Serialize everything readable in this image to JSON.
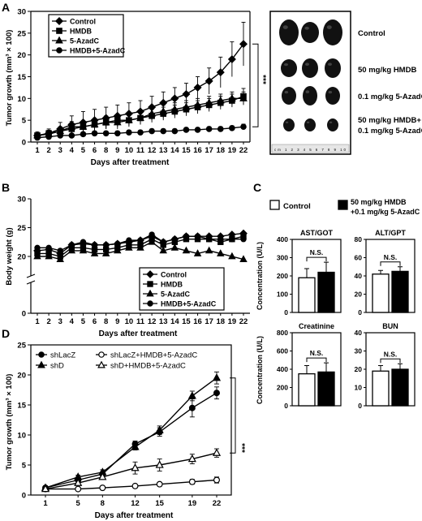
{
  "panels": {
    "A": {
      "letter": "A",
      "ylabel": "Tumor growth (mm³ × 100)",
      "xlabel": "Days after treatment",
      "significance": "***",
      "photo_labels": [
        "Control",
        "50 mg/kg HMDB",
        "0.1 mg/kg 5-AzadC",
        "50 mg/kg HMDB+",
        "0.1 mg/kg 5-AzadC"
      ],
      "ruler_text": "cm 1 2 3 4 5 6 7 8 9 10"
    },
    "B": {
      "letter": "B",
      "ylabel": "Body weight (g)",
      "xlabel": "Days after treatment"
    },
    "C": {
      "letter": "C",
      "legend": [
        "Control",
        "50 mg/kg HMDB",
        "+0.1 mg/kg 5-AzadC"
      ],
      "ylabel": "Concentration (U/L)",
      "ns": "N.S."
    },
    "D": {
      "letter": "D",
      "ylabel": "Tumor growth (mm³ × 100)",
      "xlabel": "Days after treatment",
      "significance": "***"
    }
  },
  "chart_data": [
    {
      "id": "A",
      "type": "line",
      "categories": [
        "1",
        "2",
        "3",
        "4",
        "5",
        "6",
        "8",
        "9",
        "10",
        "11",
        "12",
        "13",
        "14",
        "15",
        "16",
        "17",
        "18",
        "19",
        "22"
      ],
      "ylim": [
        0,
        30
      ],
      "yticks": [
        0,
        5,
        10,
        15,
        20,
        25,
        30
      ],
      "series": [
        {
          "name": "Control",
          "marker": "diamond",
          "values": [
            1.5,
            2.0,
            3.0,
            4.0,
            4.5,
            5.0,
            5.5,
            6.0,
            6.5,
            7.0,
            8.0,
            9.0,
            10.0,
            11.0,
            12.5,
            14.0,
            16.0,
            19.0,
            22.5
          ],
          "err": [
            0.8,
            1.0,
            1.5,
            2.0,
            2.5,
            2.5,
            2.5,
            2.5,
            2.5,
            2.5,
            2.5,
            2.5,
            2.5,
            2.5,
            2.5,
            3.0,
            3.5,
            4.0,
            5.0
          ]
        },
        {
          "name": "HMDB",
          "marker": "square",
          "values": [
            1.5,
            2.0,
            2.5,
            3.0,
            3.5,
            4.0,
            4.5,
            5.0,
            5.0,
            5.5,
            6.0,
            6.5,
            7.0,
            7.5,
            8.0,
            8.5,
            9.0,
            9.5,
            10.5
          ],
          "err": [
            0.5,
            0.7,
            0.8,
            1.0,
            1.0,
            1.0,
            1.2,
            1.2,
            1.2,
            1.5,
            1.5,
            1.5,
            1.5,
            1.5,
            1.5,
            1.5,
            1.5,
            1.5,
            1.8
          ]
        },
        {
          "name": "5-AzadC",
          "marker": "triangle",
          "values": [
            1.5,
            1.8,
            2.5,
            3.5,
            3.5,
            4.0,
            4.5,
            4.5,
            5.0,
            5.5,
            6.5,
            7.0,
            7.5,
            8.0,
            8.5,
            9.0,
            9.5,
            10.0,
            10.0
          ],
          "err": [
            0.5,
            0.7,
            1.0,
            1.2,
            1.2,
            1.2,
            1.5,
            1.5,
            1.5,
            1.5,
            1.5,
            1.5,
            1.5,
            1.5,
            1.5,
            1.5,
            1.5,
            1.5,
            1.5
          ]
        },
        {
          "name": "HMDB+5-AzadC",
          "marker": "circle",
          "values": [
            1.0,
            1.2,
            1.5,
            1.5,
            1.8,
            2.0,
            2.0,
            2.0,
            2.2,
            2.2,
            2.5,
            2.5,
            2.5,
            2.8,
            2.8,
            3.0,
            3.0,
            3.2,
            3.5
          ],
          "err": [
            0.3,
            0.3,
            0.4,
            0.4,
            0.4,
            0.5,
            0.5,
            0.5,
            0.5,
            0.5,
            0.5,
            0.5,
            0.5,
            0.5,
            0.5,
            0.5,
            0.5,
            0.5,
            0.6
          ]
        }
      ]
    },
    {
      "id": "B",
      "type": "line",
      "categories": [
        "1",
        "2",
        "3",
        "4",
        "5",
        "6",
        "8",
        "9",
        "10",
        "11",
        "12",
        "13",
        "14",
        "15",
        "16",
        "17",
        "18",
        "19",
        "22"
      ],
      "ylim": [
        0,
        30
      ],
      "yticks": [
        0,
        20,
        25,
        30
      ],
      "axis_break": true,
      "series": [
        {
          "name": "Control",
          "marker": "diamond",
          "values": [
            21.0,
            21.2,
            20.5,
            22.0,
            22.2,
            22.0,
            22.0,
            22.2,
            22.5,
            22.8,
            23.5,
            22.5,
            23.0,
            23.5,
            23.5,
            23.5,
            23.5,
            23.8,
            24.0
          ]
        },
        {
          "name": "HMDB",
          "marker": "square",
          "values": [
            20.5,
            20.5,
            20.0,
            21.5,
            21.5,
            21.2,
            21.2,
            21.5,
            22.0,
            22.0,
            23.0,
            22.0,
            22.5,
            23.0,
            23.0,
            23.0,
            22.5,
            23.0,
            23.5
          ]
        },
        {
          "name": "5-AzadC",
          "marker": "triangle",
          "values": [
            20.0,
            20.0,
            19.5,
            21.0,
            21.0,
            20.5,
            20.5,
            21.0,
            21.5,
            21.5,
            22.5,
            21.0,
            21.5,
            21.0,
            20.5,
            21.0,
            20.5,
            20.0,
            19.5
          ]
        },
        {
          "name": "HMDB+5-AzadC",
          "marker": "circle",
          "values": [
            21.5,
            21.5,
            21.0,
            22.0,
            22.5,
            22.0,
            22.0,
            22.2,
            22.8,
            22.8,
            23.8,
            22.5,
            23.0,
            23.5,
            23.5,
            23.0,
            23.0,
            23.0,
            23.0
          ]
        }
      ]
    },
    {
      "id": "C",
      "type": "bar",
      "series_names": [
        "Control",
        "50 mg/kg HMDB +0.1 mg/kg 5-AzadC"
      ],
      "subcharts": [
        {
          "title": "AST/GOT",
          "ylim": [
            0,
            400
          ],
          "yticks": [
            0,
            100,
            200,
            300,
            400
          ],
          "values": [
            190,
            220
          ],
          "err": [
            50,
            55
          ]
        },
        {
          "title": "ALT/GPT",
          "ylim": [
            0,
            80
          ],
          "yticks": [
            0,
            20,
            40,
            60,
            80
          ],
          "values": [
            42,
            45
          ],
          "err": [
            4,
            5
          ]
        },
        {
          "title": "Creatinine",
          "ylim": [
            0,
            800
          ],
          "yticks": [
            0,
            200,
            400,
            600,
            800
          ],
          "values": [
            350,
            370
          ],
          "err": [
            90,
            100
          ]
        },
        {
          "title": "BUN",
          "ylim": [
            0,
            40
          ],
          "yticks": [
            0,
            10,
            20,
            30,
            40
          ],
          "values": [
            19,
            20
          ],
          "err": [
            3,
            3
          ]
        }
      ]
    },
    {
      "id": "D",
      "type": "line",
      "x": [
        1,
        5,
        8,
        12,
        15,
        19,
        22
      ],
      "ylim": [
        0,
        25
      ],
      "yticks": [
        0,
        5,
        10,
        15,
        20,
        25
      ],
      "series": [
        {
          "name": "shLacZ",
          "marker": "circle-filled",
          "values": [
            1.2,
            2.5,
            3.5,
            8.5,
            10.5,
            14.5,
            17.0
          ],
          "err": [
            0.2,
            0.3,
            0.4,
            0.5,
            0.7,
            1.5,
            1.0
          ]
        },
        {
          "name": "shD",
          "marker": "triangle-filled",
          "values": [
            1.2,
            3.0,
            3.8,
            8.0,
            10.8,
            16.5,
            19.5
          ],
          "err": [
            0.2,
            0.3,
            0.4,
            0.5,
            0.7,
            0.8,
            1.0
          ]
        },
        {
          "name": "shLacZ+HMDB+5-AzadC",
          "marker": "circle-open",
          "values": [
            1.0,
            1.0,
            1.2,
            1.5,
            1.8,
            2.2,
            2.5
          ],
          "err": [
            0.2,
            0.2,
            0.2,
            0.3,
            0.3,
            0.4,
            0.5
          ]
        },
        {
          "name": "shD+HMDB+5-AzadC",
          "marker": "triangle-open",
          "values": [
            1.0,
            2.0,
            3.0,
            4.5,
            5.0,
            6.0,
            7.0
          ],
          "err": [
            0.2,
            0.3,
            0.4,
            1.0,
            1.0,
            0.8,
            0.7
          ]
        }
      ]
    }
  ]
}
